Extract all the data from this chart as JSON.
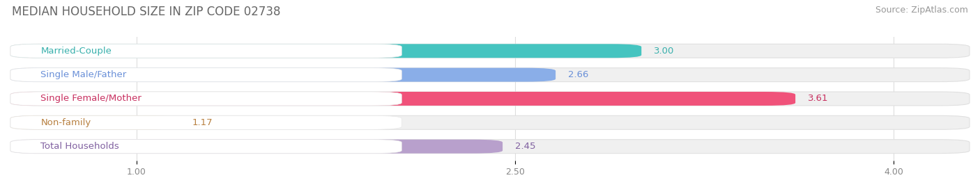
{
  "title": "MEDIAN HOUSEHOLD SIZE IN ZIP CODE 02738",
  "source": "Source: ZipAtlas.com",
  "categories": [
    "Married-Couple",
    "Single Male/Father",
    "Single Female/Mother",
    "Non-family",
    "Total Households"
  ],
  "values": [
    3.0,
    2.66,
    3.61,
    1.17,
    2.45
  ],
  "bar_colors": [
    "#45c4c0",
    "#8aaee8",
    "#f0527a",
    "#f5c98a",
    "#b8a0cc"
  ],
  "bar_edge_colors": [
    "#38b0ac",
    "#6a90d8",
    "#c83060",
    "#d8a060",
    "#9878b8"
  ],
  "text_colors": [
    "#38b0ac",
    "#6a90d8",
    "#c83060",
    "#b88040",
    "#8060a0"
  ],
  "xlim": [
    0.5,
    4.3
  ],
  "xticks": [
    1.0,
    2.5,
    4.0
  ],
  "xtick_labels": [
    "1.00",
    "2.50",
    "4.00"
  ],
  "value_labels": [
    "3.00",
    "2.66",
    "3.61",
    "1.17",
    "2.45"
  ],
  "background_color": "#ffffff",
  "bar_bg_color": "#f0f0f0",
  "title_fontsize": 12,
  "source_fontsize": 9,
  "label_fontsize": 9.5,
  "value_fontsize": 9.5,
  "tick_fontsize": 9,
  "bar_height": 0.58,
  "label_pill_color": "#ffffff",
  "row_gap_color": "#ffffff"
}
